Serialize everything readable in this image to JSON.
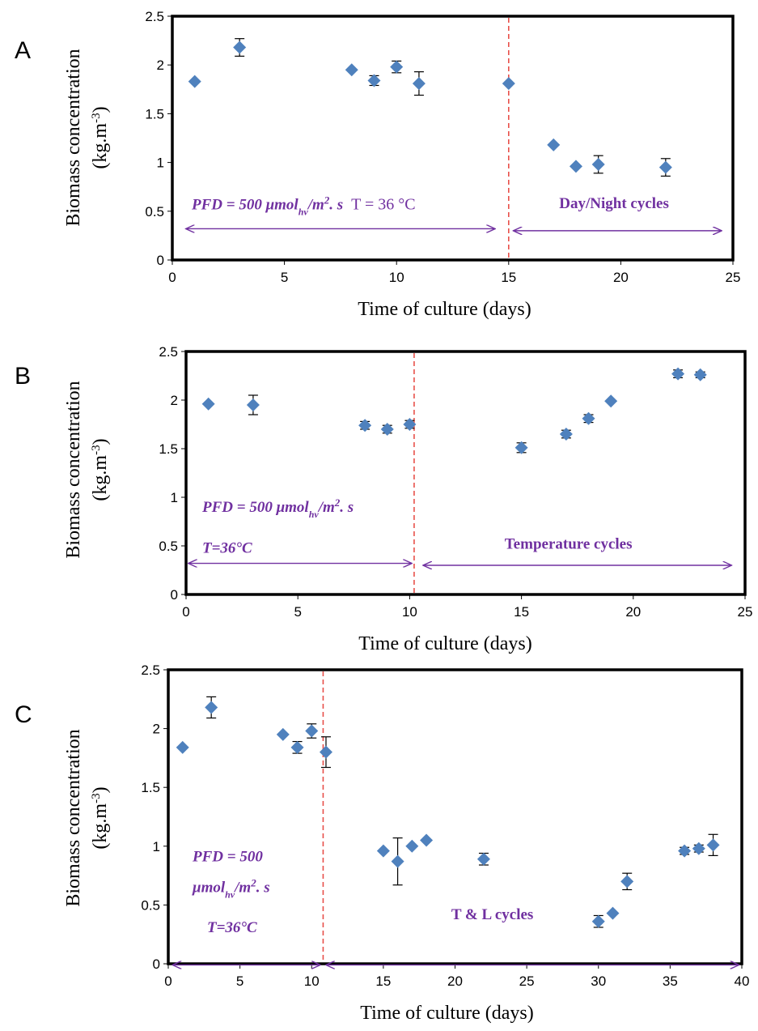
{
  "colors": {
    "marker": "#4f81bd",
    "annotation": "#7030a0",
    "divider": "#e8504a",
    "frame": "#000000",
    "error_bar": "#000000"
  },
  "chart_data": [
    {
      "type": "scatter",
      "panel": "A",
      "xlabel": "Time of culture (days)",
      "ylabel": "Biomass concentration",
      "ylabel_unit": "(kg.m-3)",
      "xlim": [
        0,
        25
      ],
      "ylim": [
        0,
        2.5
      ],
      "xticks": [
        0,
        5,
        10,
        15,
        20,
        25
      ],
      "yticks": [
        0,
        0.5,
        1,
        1.5,
        2,
        2.5
      ],
      "grid": false,
      "divider_x": 15,
      "points": [
        {
          "x": 1,
          "y": 1.83,
          "err": 0
        },
        {
          "x": 3,
          "y": 2.18,
          "err": 0.09
        },
        {
          "x": 8,
          "y": 1.95,
          "err": 0
        },
        {
          "x": 9,
          "y": 1.84,
          "err": 0.05
        },
        {
          "x": 10,
          "y": 1.98,
          "err": 0.06
        },
        {
          "x": 11,
          "y": 1.81,
          "err": 0.12
        },
        {
          "x": 15,
          "y": 1.81,
          "err": 0
        },
        {
          "x": 17,
          "y": 1.18,
          "err": 0
        },
        {
          "x": 18,
          "y": 0.96,
          "err": 0
        },
        {
          "x": 19,
          "y": 0.98,
          "err": 0.09
        },
        {
          "x": 22,
          "y": 0.95,
          "err": 0.09
        }
      ],
      "annotations": {
        "left": {
          "pfd": "PFD = 500 μmol",
          "sub": "hv",
          "tail": "/m",
          "sup": "2",
          "end": ". s",
          "temp": "T = 36 °C"
        },
        "right": "Day/Night cycles"
      },
      "arrows": [
        {
          "x1": 0.6,
          "x2": 14.4,
          "y": 0.32
        },
        {
          "x1": 15.2,
          "x2": 24.5,
          "y": 0.3
        }
      ]
    },
    {
      "type": "scatter",
      "panel": "B",
      "xlabel": "Time of culture (days)",
      "ylabel": "Biomass concentration",
      "ylabel_unit": "(kg.m-3)",
      "xlim": [
        0,
        25
      ],
      "ylim": [
        0,
        2.5
      ],
      "xticks": [
        0,
        5,
        10,
        15,
        20,
        25
      ],
      "yticks": [
        0,
        0.5,
        1,
        1.5,
        2,
        2.5
      ],
      "grid": false,
      "divider_x": 10.2,
      "points": [
        {
          "x": 1,
          "y": 1.96,
          "err": 0
        },
        {
          "x": 3,
          "y": 1.95,
          "err": 0.1
        },
        {
          "x": 8,
          "y": 1.74,
          "err": 0.04
        },
        {
          "x": 9,
          "y": 1.7,
          "err": 0.04
        },
        {
          "x": 10,
          "y": 1.75,
          "err": 0.04
        },
        {
          "x": 15,
          "y": 1.51,
          "err": 0.05
        },
        {
          "x": 17,
          "y": 1.65,
          "err": 0.04
        },
        {
          "x": 18,
          "y": 1.81,
          "err": 0.04
        },
        {
          "x": 19,
          "y": 1.99,
          "err": 0
        },
        {
          "x": 22,
          "y": 2.27,
          "err": 0.04
        },
        {
          "x": 23,
          "y": 2.26,
          "err": 0.03
        }
      ],
      "annotations": {
        "left": {
          "pfd": "PFD = 500 μmol",
          "sub": "hv",
          "tail": "/m",
          "sup": "2",
          "end": ". s",
          "temp": "T=36°C"
        },
        "right": "Temperature cycles"
      },
      "arrows": [
        {
          "x1": 0.1,
          "x2": 10.1,
          "y": 0.32
        },
        {
          "x1": 10.6,
          "x2": 24.4,
          "y": 0.3
        }
      ]
    },
    {
      "type": "scatter",
      "panel": "C",
      "xlabel": "Time of culture (days)",
      "ylabel": "Biomass concentration",
      "ylabel_unit": "(kg.m-3)",
      "xlim": [
        0,
        40
      ],
      "ylim": [
        0,
        2.5
      ],
      "xticks": [
        0,
        5,
        10,
        15,
        20,
        25,
        30,
        35,
        40
      ],
      "yticks": [
        0,
        0.5,
        1,
        1.5,
        2,
        2.5
      ],
      "grid": false,
      "divider_x": 10.8,
      "points": [
        {
          "x": 1,
          "y": 1.84,
          "err": 0
        },
        {
          "x": 3,
          "y": 2.18,
          "err": 0.09
        },
        {
          "x": 8,
          "y": 1.95,
          "err": 0
        },
        {
          "x": 9,
          "y": 1.84,
          "err": 0.05
        },
        {
          "x": 10,
          "y": 1.98,
          "err": 0.06
        },
        {
          "x": 11,
          "y": 1.8,
          "err": 0.13
        },
        {
          "x": 15,
          "y": 0.96,
          "err": 0
        },
        {
          "x": 16,
          "y": 0.87,
          "err": 0.2
        },
        {
          "x": 17,
          "y": 1.0,
          "err": 0
        },
        {
          "x": 18,
          "y": 1.05,
          "err": 0
        },
        {
          "x": 22,
          "y": 0.89,
          "err": 0.05
        },
        {
          "x": 30,
          "y": 0.36,
          "err": 0.05
        },
        {
          "x": 31,
          "y": 0.43,
          "err": 0
        },
        {
          "x": 32,
          "y": 0.7,
          "err": 0.07
        },
        {
          "x": 36,
          "y": 0.96,
          "err": 0.03
        },
        {
          "x": 37,
          "y": 0.98,
          "err": 0.03
        },
        {
          "x": 38,
          "y": 1.01,
          "err": 0.09
        }
      ],
      "annotations": {
        "left_line1": "PFD = 500",
        "left_line2": {
          "pfd": "μmol",
          "sub": "hv",
          "tail": "/m",
          "sup": "2",
          "end": ". s"
        },
        "temp": "T=36°C",
        "right": "T & L cycles"
      },
      "arrows": [
        {
          "x1": 0.3,
          "x2": 10.6,
          "y": -0.01
        },
        {
          "x1": 11.0,
          "x2": 39.8,
          "y": -0.01
        }
      ]
    }
  ],
  "panel_letters": [
    "A",
    "B",
    "C"
  ]
}
